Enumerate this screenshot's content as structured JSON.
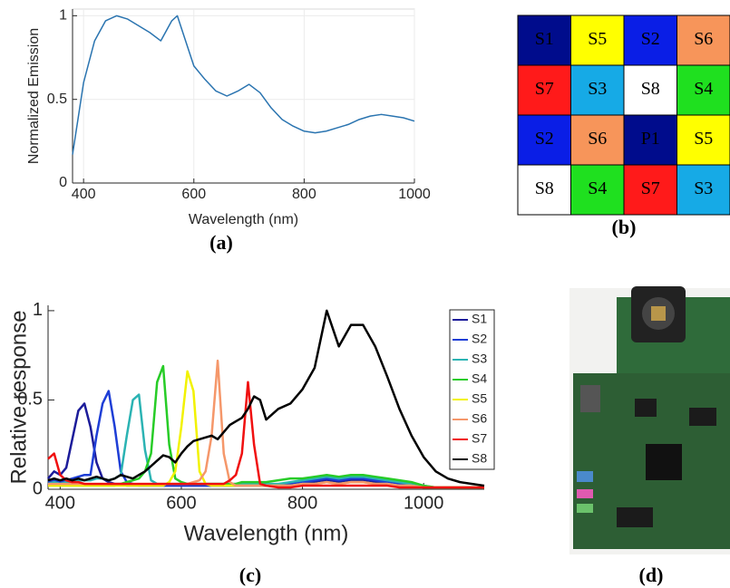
{
  "chart_data": [
    {
      "type": "line",
      "panel_label": "(a)",
      "xlabel": "Wavelength (nm)",
      "ylabel": "Normalized Emission",
      "x": [
        380,
        400,
        420,
        440,
        460,
        480,
        500,
        520,
        540,
        560,
        570,
        580,
        600,
        620,
        640,
        660,
        680,
        700,
        720,
        740,
        760,
        780,
        800,
        820,
        840,
        860,
        880,
        900,
        920,
        940,
        960,
        980,
        1000
      ],
      "values": [
        0.17,
        0.6,
        0.85,
        0.97,
        1.0,
        0.98,
        0.94,
        0.9,
        0.85,
        0.97,
        1.0,
        0.9,
        0.7,
        0.62,
        0.55,
        0.52,
        0.55,
        0.59,
        0.54,
        0.45,
        0.38,
        0.34,
        0.31,
        0.3,
        0.31,
        0.33,
        0.35,
        0.38,
        0.4,
        0.41,
        0.4,
        0.39,
        0.37
      ],
      "color": "#2a74b0",
      "xlim": [
        380,
        1000
      ],
      "ylim": [
        0,
        1.04
      ],
      "xticks": [
        400,
        600,
        800,
        1000
      ],
      "yticks": [
        0,
        0.5,
        1
      ],
      "grid": true
    },
    {
      "type": "line",
      "panel_label": "(c)",
      "xlabel": "Wavelength (nm)",
      "ylabel": "Relative response",
      "x": [
        380,
        390,
        400,
        410,
        420,
        430,
        440,
        450,
        460,
        470,
        480,
        490,
        500,
        510,
        520,
        530,
        540,
        550,
        560,
        570,
        580,
        590,
        600,
        610,
        620,
        630,
        640,
        650,
        660,
        670,
        680,
        690,
        700,
        710,
        720,
        730,
        740,
        760,
        780,
        800,
        820,
        840,
        860,
        880,
        900,
        920,
        940,
        960,
        980,
        1000,
        1020,
        1040,
        1060,
        1080,
        1100
      ],
      "series": [
        {
          "name": "S1",
          "color": "#1c1c9a",
          "values": [
            0.06,
            0.1,
            0.08,
            0.12,
            0.28,
            0.44,
            0.48,
            0.35,
            0.15,
            0.06,
            0.04,
            0.03,
            0.03,
            0.02,
            0.02,
            0.02,
            0.02,
            0.02,
            0.02,
            0.02,
            0.02,
            0.02,
            0.02,
            0.02,
            0.02,
            0.02,
            0.02,
            0.02,
            0.02,
            0.02,
            0.02,
            0.02,
            0.02,
            0.02,
            0.02,
            0.02,
            0.02,
            0.02,
            0.03,
            0.03,
            0.04,
            0.05,
            0.04,
            0.05,
            0.05,
            0.04,
            0.03,
            0.02,
            0.02,
            0.01,
            0.01,
            0.01,
            0.01,
            0.01,
            0.01
          ]
        },
        {
          "name": "S2",
          "color": "#1e3ed6",
          "values": [
            0.04,
            0.05,
            0.04,
            0.05,
            0.06,
            0.07,
            0.08,
            0.08,
            0.3,
            0.48,
            0.55,
            0.35,
            0.1,
            0.04,
            0.03,
            0.02,
            0.02,
            0.02,
            0.02,
            0.02,
            0.02,
            0.02,
            0.02,
            0.02,
            0.02,
            0.02,
            0.02,
            0.02,
            0.02,
            0.02,
            0.02,
            0.02,
            0.02,
            0.02,
            0.02,
            0.02,
            0.02,
            0.02,
            0.03,
            0.04,
            0.05,
            0.06,
            0.05,
            0.06,
            0.06,
            0.05,
            0.04,
            0.03,
            0.02,
            0.01,
            0.01,
            0.01,
            0.01,
            0.01,
            0.01
          ]
        },
        {
          "name": "S3",
          "color": "#2bb3b3",
          "values": [
            0.03,
            0.04,
            0.03,
            0.04,
            0.04,
            0.05,
            0.05,
            0.05,
            0.06,
            0.06,
            0.05,
            0.06,
            0.08,
            0.3,
            0.5,
            0.53,
            0.22,
            0.05,
            0.03,
            0.03,
            0.03,
            0.03,
            0.03,
            0.03,
            0.03,
            0.03,
            0.03,
            0.03,
            0.03,
            0.03,
            0.03,
            0.03,
            0.03,
            0.03,
            0.03,
            0.03,
            0.03,
            0.03,
            0.04,
            0.05,
            0.06,
            0.07,
            0.06,
            0.07,
            0.07,
            0.06,
            0.05,
            0.04,
            0.03,
            0.02,
            0.01,
            0.01,
            0.01,
            0.01,
            0.01
          ]
        },
        {
          "name": "S4",
          "color": "#27cc27",
          "values": [
            0.02,
            0.02,
            0.02,
            0.02,
            0.02,
            0.02,
            0.02,
            0.02,
            0.02,
            0.02,
            0.02,
            0.02,
            0.03,
            0.04,
            0.05,
            0.06,
            0.1,
            0.2,
            0.6,
            0.69,
            0.25,
            0.06,
            0.04,
            0.03,
            0.03,
            0.03,
            0.03,
            0.03,
            0.03,
            0.03,
            0.03,
            0.03,
            0.04,
            0.04,
            0.04,
            0.04,
            0.04,
            0.05,
            0.06,
            0.06,
            0.07,
            0.08,
            0.07,
            0.08,
            0.08,
            0.07,
            0.06,
            0.05,
            0.04,
            0.02,
            0.01,
            0.01,
            0.01,
            0.01,
            0.01
          ]
        },
        {
          "name": "S5",
          "color": "#f2f200",
          "values": [
            0.02,
            0.02,
            0.02,
            0.02,
            0.02,
            0.02,
            0.02,
            0.02,
            0.02,
            0.02,
            0.02,
            0.02,
            0.02,
            0.02,
            0.02,
            0.02,
            0.02,
            0.02,
            0.02,
            0.02,
            0.04,
            0.1,
            0.35,
            0.66,
            0.55,
            0.1,
            0.03,
            0.02,
            0.02,
            0.02,
            0.02,
            0.02,
            0.02,
            0.02,
            0.02,
            0.02,
            0.02,
            0.02,
            0.02,
            0.03,
            0.03,
            0.04,
            0.03,
            0.04,
            0.04,
            0.03,
            0.03,
            0.02,
            0.02,
            0.01,
            0.01,
            0.01,
            0.01,
            0.01,
            0.01
          ]
        },
        {
          "name": "S6",
          "color": "#f5976a",
          "values": [
            0.03,
            0.03,
            0.03,
            0.03,
            0.03,
            0.03,
            0.03,
            0.03,
            0.03,
            0.03,
            0.03,
            0.03,
            0.03,
            0.03,
            0.03,
            0.03,
            0.03,
            0.03,
            0.03,
            0.03,
            0.03,
            0.03,
            0.03,
            0.03,
            0.04,
            0.05,
            0.1,
            0.3,
            0.72,
            0.2,
            0.04,
            0.02,
            0.02,
            0.02,
            0.02,
            0.02,
            0.02,
            0.02,
            0.02,
            0.03,
            0.03,
            0.04,
            0.03,
            0.04,
            0.04,
            0.03,
            0.03,
            0.02,
            0.02,
            0.01,
            0.01,
            0.01,
            0.01,
            0.01,
            0.01
          ]
        },
        {
          "name": "S7",
          "color": "#f01010",
          "values": [
            0.17,
            0.2,
            0.08,
            0.05,
            0.04,
            0.04,
            0.03,
            0.03,
            0.03,
            0.03,
            0.03,
            0.03,
            0.03,
            0.03,
            0.03,
            0.03,
            0.03,
            0.03,
            0.03,
            0.03,
            0.03,
            0.03,
            0.03,
            0.03,
            0.03,
            0.03,
            0.03,
            0.03,
            0.03,
            0.03,
            0.05,
            0.08,
            0.2,
            0.6,
            0.25,
            0.03,
            0.02,
            0.01,
            0.01,
            0.02,
            0.02,
            0.02,
            0.02,
            0.02,
            0.02,
            0.02,
            0.02,
            0.01,
            0.01,
            0.01,
            0.01,
            0.01,
            0.01,
            0.01,
            0.01
          ]
        },
        {
          "name": "S8",
          "color": "#000000",
          "values": [
            0.05,
            0.06,
            0.05,
            0.06,
            0.05,
            0.06,
            0.05,
            0.06,
            0.07,
            0.06,
            0.05,
            0.06,
            0.08,
            0.07,
            0.06,
            0.08,
            0.1,
            0.13,
            0.16,
            0.19,
            0.18,
            0.15,
            0.2,
            0.24,
            0.27,
            0.28,
            0.29,
            0.3,
            0.28,
            0.32,
            0.36,
            0.38,
            0.4,
            0.45,
            0.52,
            0.5,
            0.39,
            0.45,
            0.48,
            0.56,
            0.68,
            1.0,
            0.8,
            0.92,
            0.92,
            0.8,
            0.63,
            0.45,
            0.3,
            0.18,
            0.1,
            0.06,
            0.04,
            0.03,
            0.02
          ]
        }
      ],
      "xlim": [
        380,
        1100
      ],
      "ylim": [
        0,
        1.03
      ],
      "xticks": [
        400,
        600,
        800,
        1000
      ],
      "yticks": [
        0,
        0.5,
        1
      ],
      "grid": false,
      "legend": "top-right"
    }
  ],
  "mosaic": {
    "panel_label": "(b)",
    "rows": [
      [
        "S1",
        "S5",
        "S2",
        "S6"
      ],
      [
        "S7",
        "S3",
        "S8",
        "S4"
      ],
      [
        "S2",
        "S6",
        "P1",
        "S5"
      ],
      [
        "S8",
        "S4",
        "S7",
        "S3"
      ]
    ],
    "colors": {
      "S1": "#000c8c",
      "P1": "#000c8c",
      "S2": "#0a1ee6",
      "S3": "#16aae6",
      "S4": "#1fe01f",
      "S5": "#ffff00",
      "S6": "#f7955a",
      "S7": "#ff1a1a",
      "S8": "#ffffff"
    }
  },
  "photo": {
    "panel_label": "(d)"
  }
}
